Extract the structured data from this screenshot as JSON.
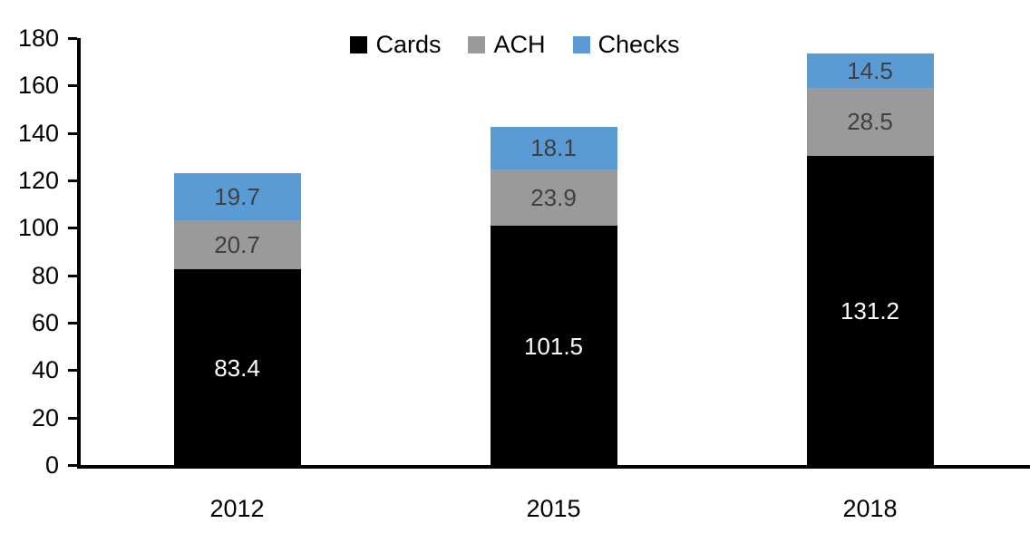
{
  "chart_data": {
    "type": "bar",
    "stacked": true,
    "title": "",
    "xlabel": "",
    "ylabel": "",
    "categories": [
      "2012",
      "2015",
      "2018"
    ],
    "series": [
      {
        "name": "Cards",
        "color": "#000000",
        "label_color": "#ffffff",
        "values": [
          83.4,
          101.5,
          131.2
        ],
        "labels": [
          "83.4",
          "101.5",
          "131.2"
        ]
      },
      {
        "name": "ACH",
        "color": "#9a9a9a",
        "label_color": "#404040",
        "values": [
          20.7,
          23.9,
          28.5
        ],
        "labels": [
          "20.7",
          "23.9",
          "28.5"
        ]
      },
      {
        "name": "Checks",
        "color": "#5b9bd5",
        "label_color": "#404040",
        "values": [
          19.7,
          18.1,
          14.5
        ],
        "labels": [
          "19.7",
          "18.1",
          "14.5"
        ]
      }
    ],
    "totals": [
      123.8,
      143.5,
      174.2
    ],
    "ylim": [
      0,
      180
    ],
    "ytick_step": 20,
    "ytick_labels": [
      "0",
      "20",
      "40",
      "60",
      "80",
      "100",
      "120",
      "140",
      "160",
      "180"
    ],
    "legend_position": "top",
    "grid": false,
    "axis_color": "#000000",
    "background": "#ffffff"
  }
}
